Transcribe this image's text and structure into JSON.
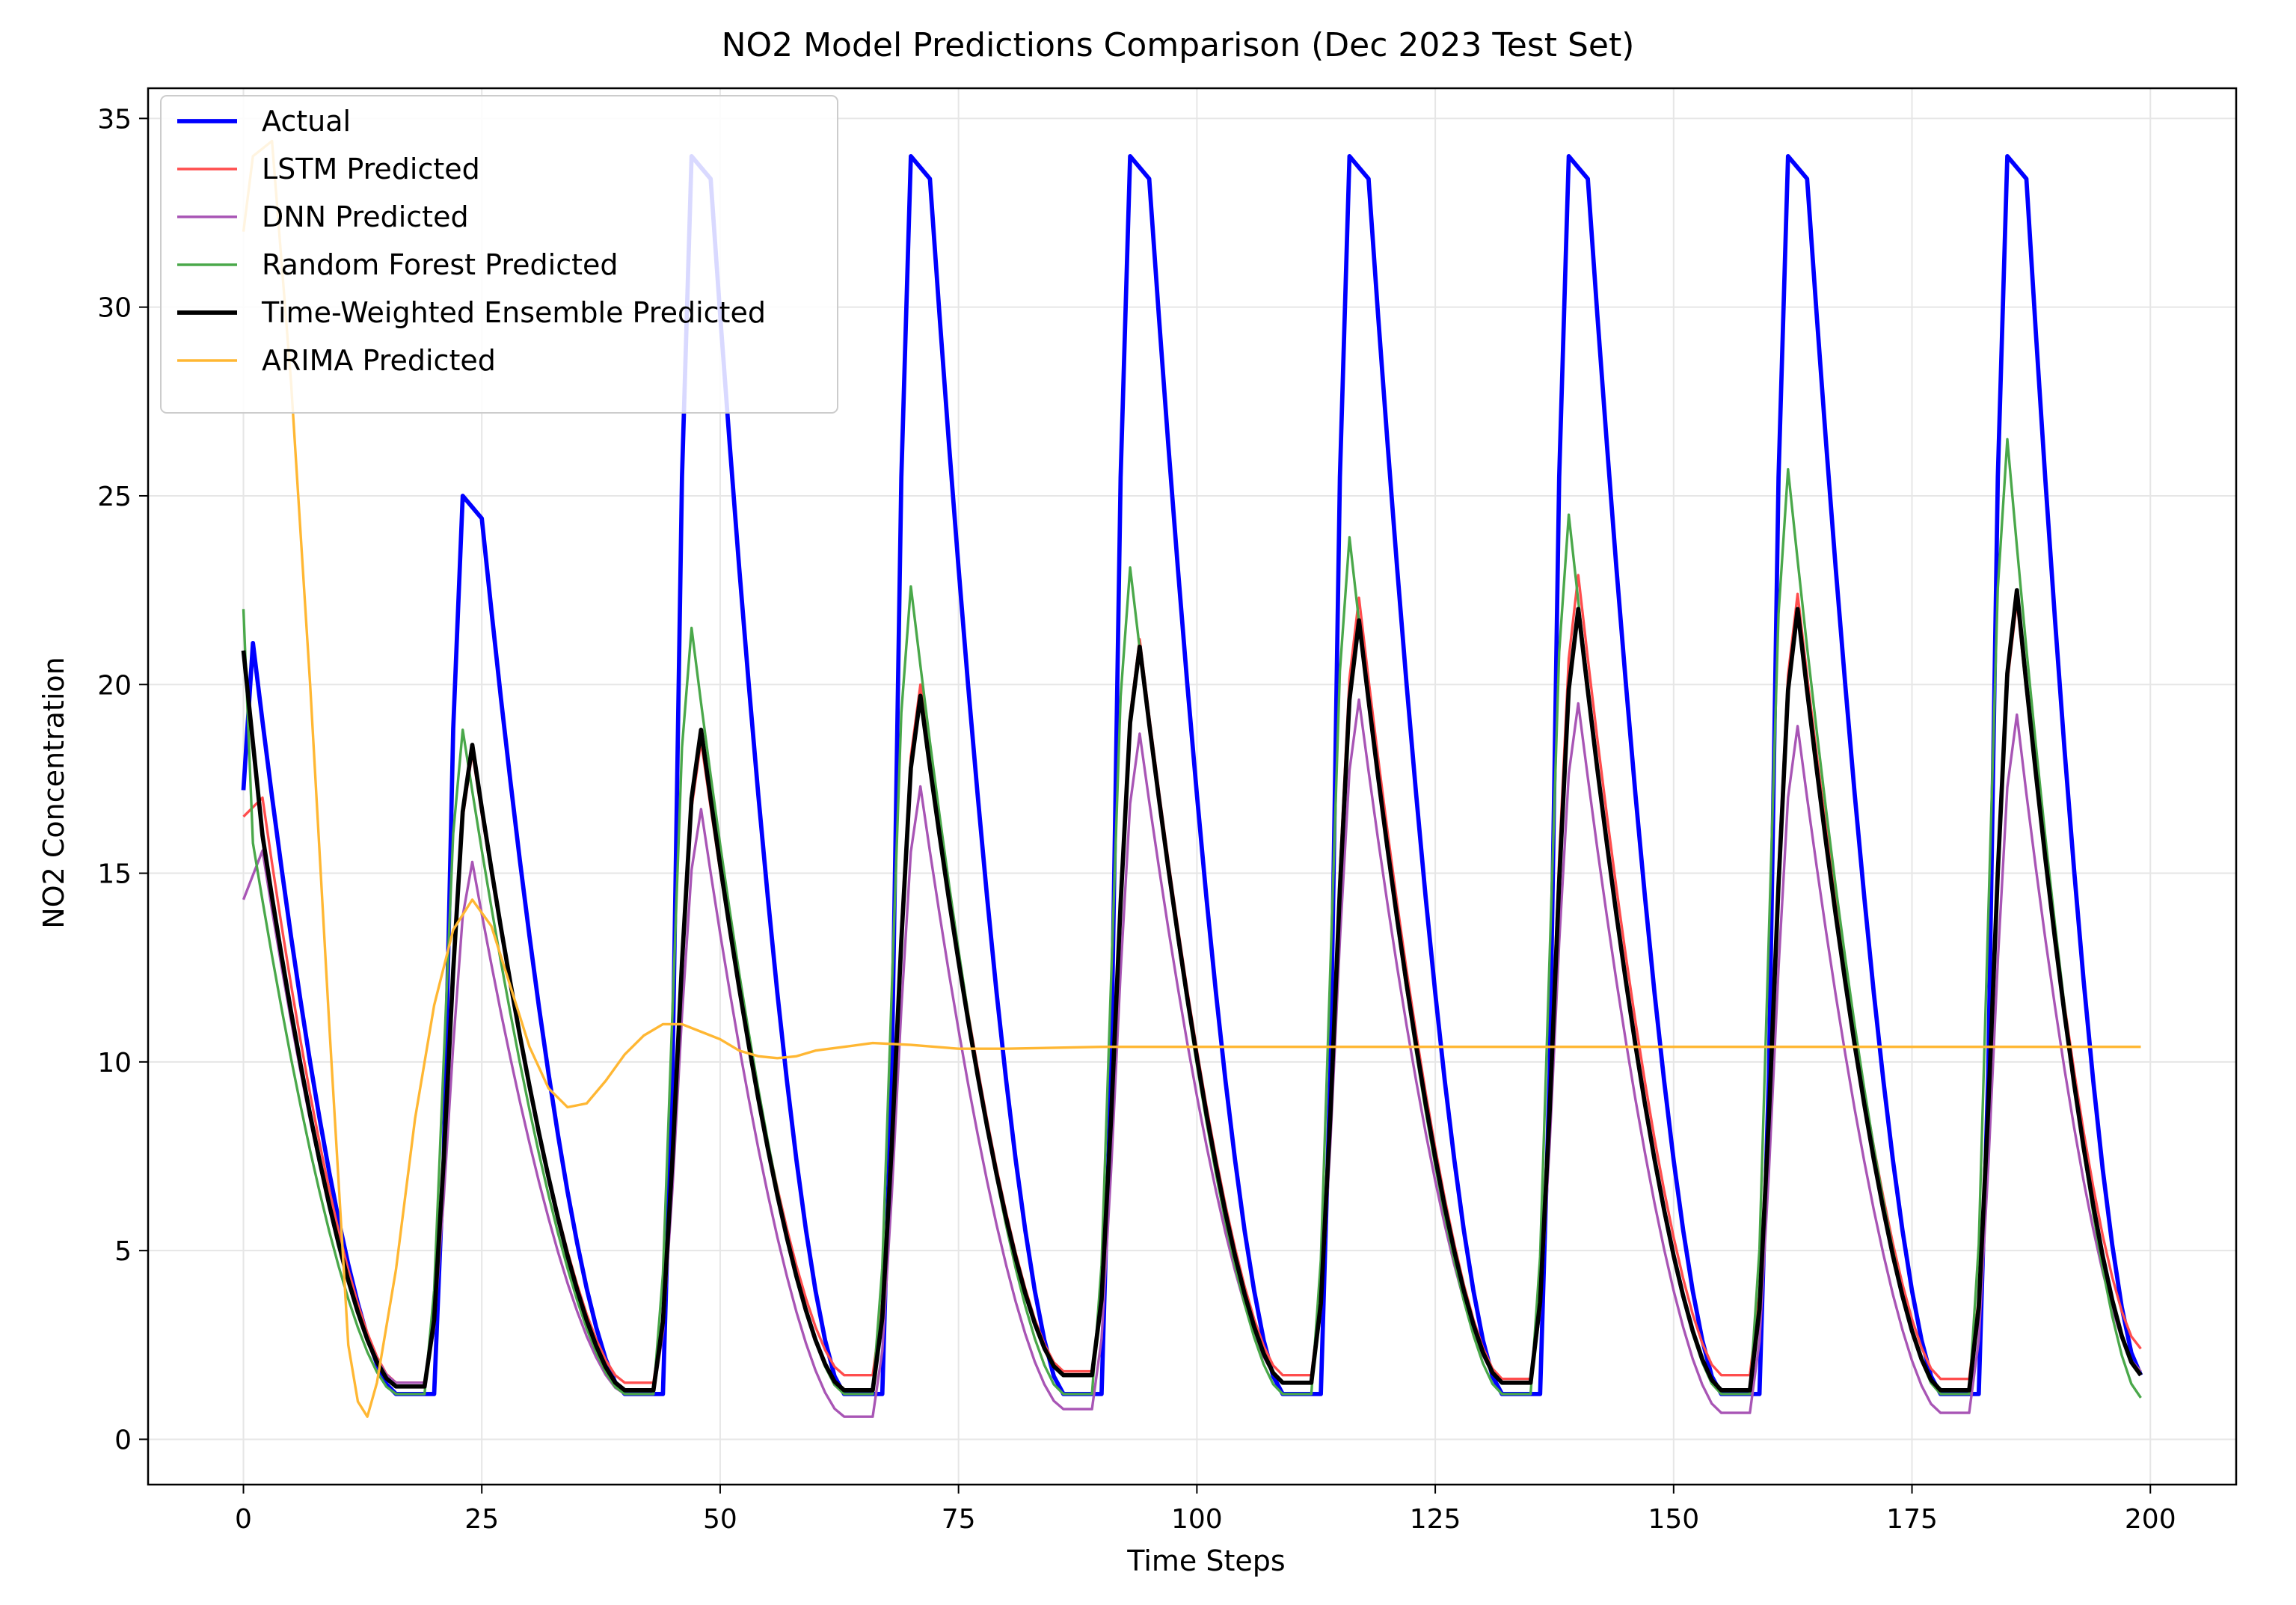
{
  "chart_data": {
    "type": "line",
    "title": "NO2 Model Predictions Comparison (Dec 2023 Test Set)",
    "xlabel": "Time Steps",
    "ylabel": "NO2 Concentration",
    "xlim": [
      -10,
      209
    ],
    "ylim": [
      -1.2,
      35.8
    ],
    "xticks": [
      0,
      25,
      50,
      75,
      100,
      125,
      150,
      175,
      200
    ],
    "yticks": [
      0,
      5,
      10,
      15,
      20,
      25,
      30,
      35
    ],
    "grid": true,
    "legend_position": "top-left",
    "peaks": [
      1,
      23,
      47,
      70,
      93,
      116,
      139,
      162,
      185
    ],
    "valleys": [
      16,
      40,
      63,
      86,
      109,
      132,
      155,
      178
    ],
    "series": [
      {
        "name": "Actual",
        "color": "#0000ff",
        "width": 2.2,
        "start": 17.2,
        "end": 1.7,
        "peak_values": [
          21.1,
          25.0,
          34.0,
          34.0,
          34.0,
          34.0,
          34.0,
          34.0,
          34.0
        ],
        "valley_values": [
          1.2,
          1.2,
          1.2,
          1.2,
          1.2,
          1.2,
          1.2,
          1.2
        ],
        "rise_steps": 3,
        "peak_shift": 0
      },
      {
        "name": "LSTM Predicted",
        "color": "#ff4d4d",
        "width": 1.3,
        "start": 16.5,
        "end": 2.4,
        "peak_values": [
          17.0,
          18.2,
          18.5,
          20.0,
          21.2,
          22.3,
          22.9,
          22.4,
          22.2
        ],
        "valley_values": [
          1.5,
          1.5,
          1.7,
          1.8,
          1.7,
          1.6,
          1.7,
          1.6
        ],
        "rise_steps": 5,
        "peak_shift": 1
      },
      {
        "name": "DNN Predicted",
        "color": "#a855b5",
        "width": 1.3,
        "start": 14.3,
        "end": 1.8,
        "peak_values": [
          15.6,
          15.3,
          16.7,
          17.3,
          18.7,
          19.6,
          19.5,
          18.9,
          19.2
        ],
        "valley_values": [
          1.5,
          1.2,
          0.6,
          0.8,
          1.5,
          1.5,
          0.7,
          0.7
        ],
        "rise_steps": 5,
        "peak_shift": 1
      },
      {
        "name": "Random Forest Predicted",
        "color": "#4aa84a",
        "width": 1.3,
        "start": 22.0,
        "end": 1.1,
        "peak_values": [
          15.8,
          18.8,
          21.5,
          22.6,
          23.1,
          23.9,
          24.5,
          25.7,
          26.5
        ],
        "valley_values": [
          1.2,
          1.2,
          1.2,
          1.2,
          1.2,
          1.2,
          1.2,
          1.2
        ],
        "rise_steps": 4,
        "peak_shift": 0
      },
      {
        "name": "Time-Weighted Ensemble Predicted",
        "color": "#000000",
        "width": 2.2,
        "start": 20.9,
        "end": 1.7,
        "peak_values": [
          16.0,
          18.4,
          18.8,
          19.7,
          21.0,
          21.7,
          22.0,
          22.0,
          22.5
        ],
        "valley_values": [
          1.4,
          1.3,
          1.3,
          1.7,
          1.5,
          1.5,
          1.3,
          1.3
        ],
        "rise_steps": 5,
        "peak_shift": 1
      },
      {
        "name": "ARIMA Predicted",
        "color": "#ffb733",
        "width": 1.3,
        "points": [
          [
            0,
            32.0
          ],
          [
            1,
            34.0
          ],
          [
            3,
            34.4
          ],
          [
            5,
            28.0
          ],
          [
            7,
            20.0
          ],
          [
            9,
            11.0
          ],
          [
            11,
            2.5
          ],
          [
            12,
            1.0
          ],
          [
            13,
            0.6
          ],
          [
            14,
            1.5
          ],
          [
            16,
            4.5
          ],
          [
            18,
            8.5
          ],
          [
            20,
            11.5
          ],
          [
            22,
            13.5
          ],
          [
            24,
            14.3
          ],
          [
            26,
            13.6
          ],
          [
            28,
            12.0
          ],
          [
            30,
            10.4
          ],
          [
            32,
            9.3
          ],
          [
            34,
            8.8
          ],
          [
            36,
            8.9
          ],
          [
            38,
            9.5
          ],
          [
            40,
            10.2
          ],
          [
            42,
            10.7
          ],
          [
            44,
            11.0
          ],
          [
            46,
            11.0
          ],
          [
            48,
            10.8
          ],
          [
            50,
            10.6
          ],
          [
            52,
            10.3
          ],
          [
            54,
            10.15
          ],
          [
            56,
            10.1
          ],
          [
            58,
            10.15
          ],
          [
            60,
            10.3
          ],
          [
            63,
            10.4
          ],
          [
            66,
            10.5
          ],
          [
            70,
            10.45
          ],
          [
            75,
            10.35
          ],
          [
            80,
            10.35
          ],
          [
            90,
            10.4
          ],
          [
            100,
            10.4
          ],
          [
            120,
            10.4
          ],
          [
            150,
            10.4
          ],
          [
            175,
            10.4
          ],
          [
            199,
            10.4
          ]
        ]
      }
    ]
  }
}
